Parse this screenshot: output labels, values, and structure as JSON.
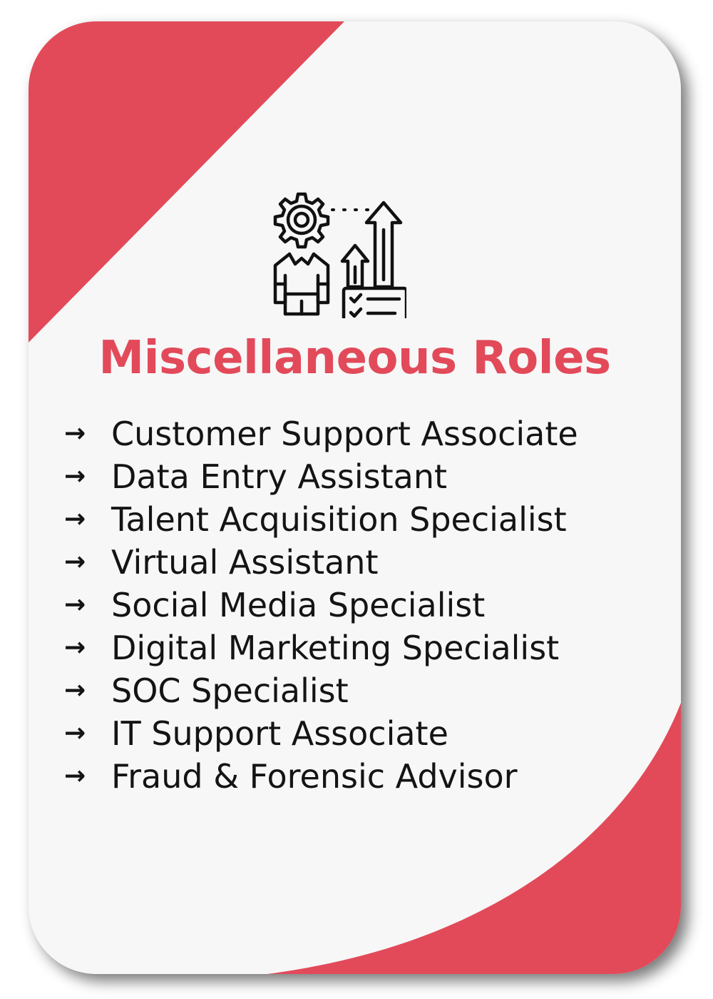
{
  "card": {
    "title": "Miscellaneous Roles",
    "icon": "gear-person-growth-icon",
    "arrow_glyph": "→",
    "roles": [
      {
        "label": "Customer Support Associate"
      },
      {
        "label": "Data Entry Assistant"
      },
      {
        "label": "Talent Acquisition Specialist"
      },
      {
        "label": "Virtual Assistant"
      },
      {
        "label": "Social Media Specialist"
      },
      {
        "label": "Digital Marketing Specialist"
      },
      {
        "label": "SOC Specialist"
      },
      {
        "label": "IT Support Associate"
      },
      {
        "label": "Fraud & Forensic Advisor"
      }
    ]
  },
  "colors": {
    "accent": "#e24a5a",
    "card_background": "#f7f7f7",
    "text": "#141414",
    "shadow": "#6b6b6b"
  }
}
